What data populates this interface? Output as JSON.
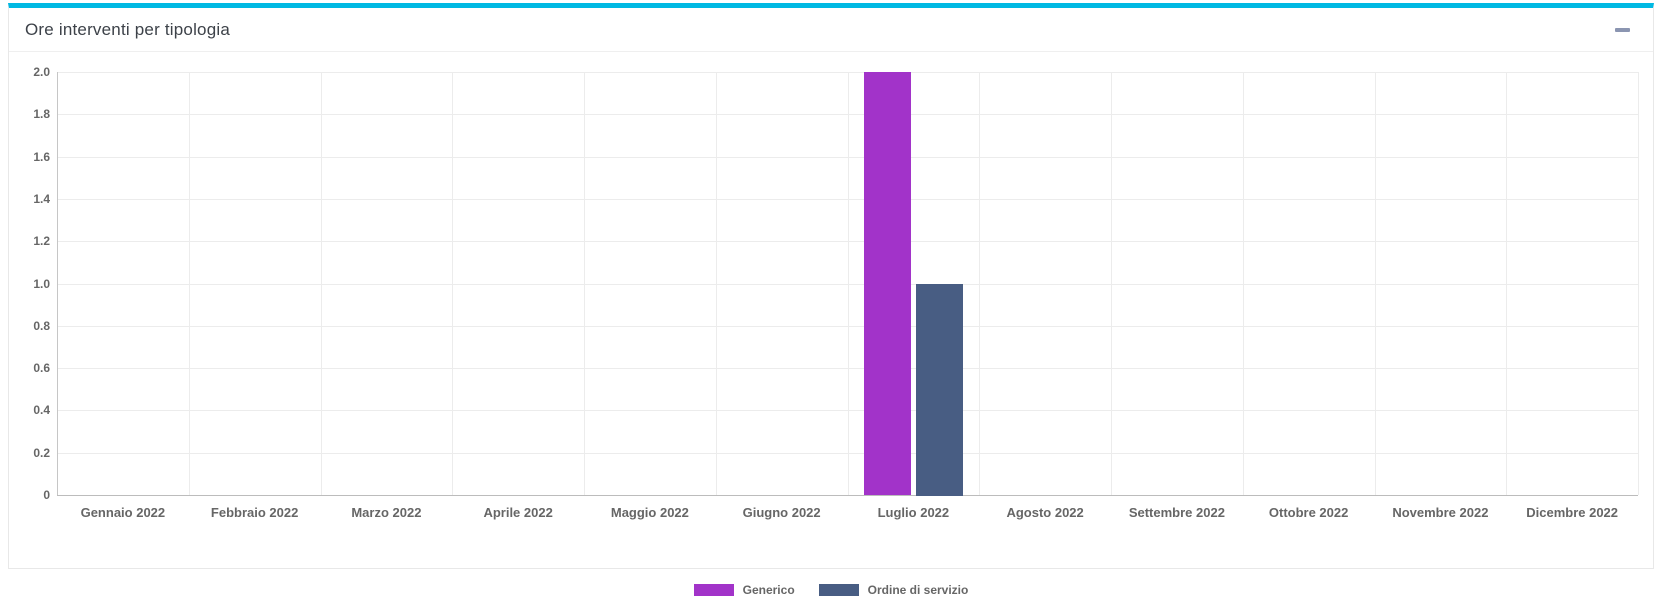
{
  "panel": {
    "title": "Ore interventi per tipologia",
    "collapse_icon": "minus-icon",
    "accent_color": "#00b9e3"
  },
  "chart_data": {
    "type": "bar",
    "title": "Ore interventi per tipologia",
    "categories": [
      "Gennaio 2022",
      "Febbraio 2022",
      "Marzo 2022",
      "Aprile 2022",
      "Maggio 2022",
      "Giugno 2022",
      "Luglio 2022",
      "Agosto 2022",
      "Settembre 2022",
      "Ottobre 2022",
      "Novembre 2022",
      "Dicembre 2022"
    ],
    "series": [
      {
        "name": "Generico",
        "color": "#a233c9",
        "values": [
          0,
          0,
          0,
          0,
          0,
          0,
          2,
          0,
          0,
          0,
          0,
          0
        ]
      },
      {
        "name": "Ordine di servizio",
        "color": "#485d83",
        "values": [
          0,
          0,
          0,
          0,
          0,
          0,
          1,
          0,
          0,
          0,
          0,
          0
        ]
      }
    ],
    "xlabel": "",
    "ylabel": "",
    "ylim": [
      0,
      2
    ],
    "ytick_step": 0.2,
    "grid": true,
    "legend_position": "bottom"
  }
}
